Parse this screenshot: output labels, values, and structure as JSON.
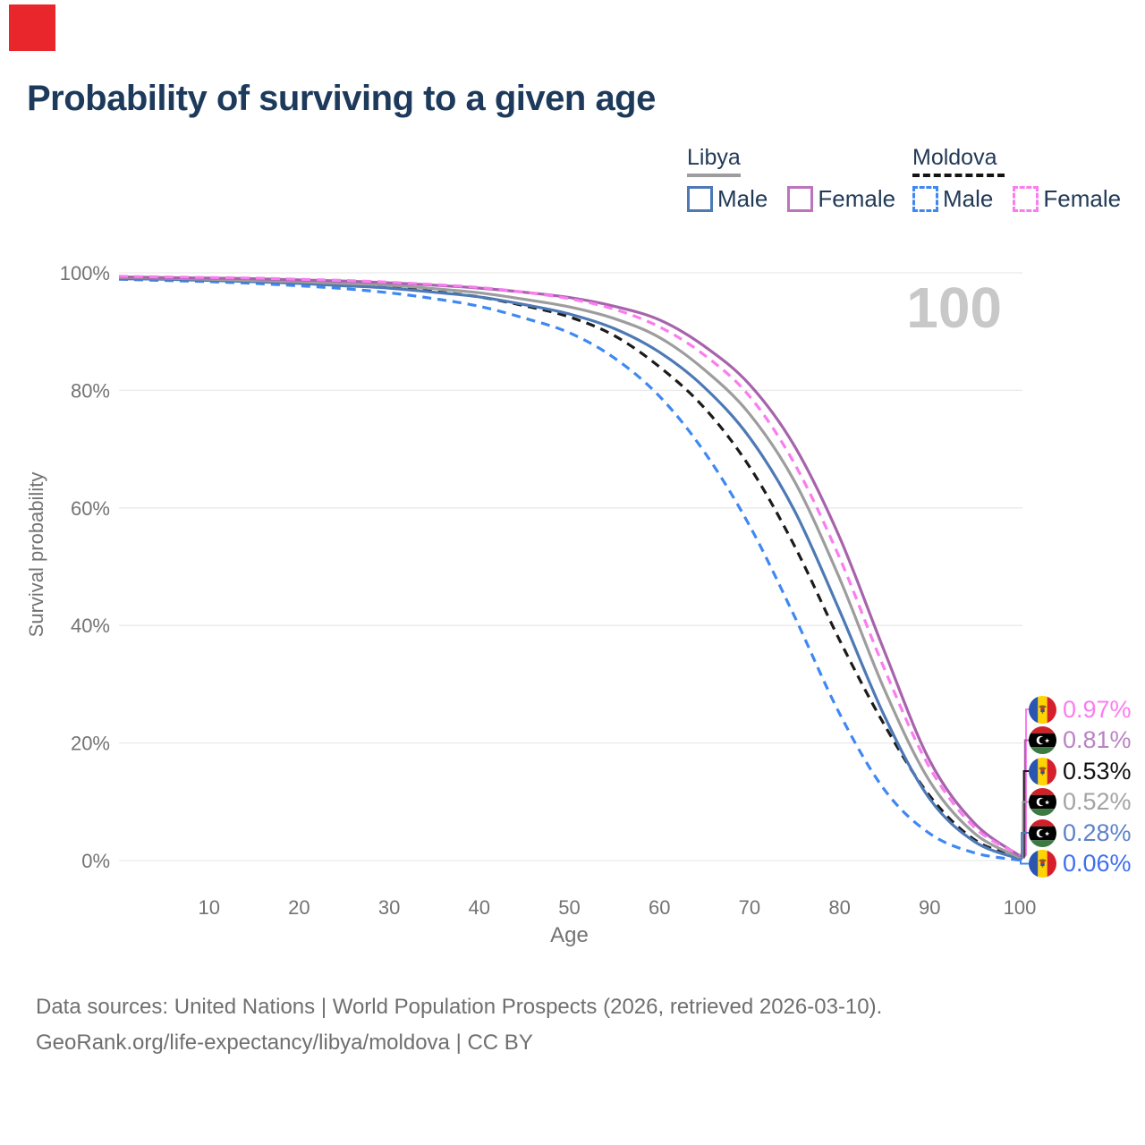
{
  "marker": {
    "color": "#e8262b"
  },
  "title": {
    "text": "Probability of surviving to a given age",
    "color": "#1d3a5c"
  },
  "legend": {
    "text_color": "#223a57",
    "groups": [
      {
        "name": "Libya",
        "underline": "solid",
        "underline_color": "#9d9d9d",
        "items": [
          {
            "label": "Male",
            "color": "#4d79b5",
            "dashed": false
          },
          {
            "label": "Female",
            "color": "#bb74bd",
            "dashed": false
          }
        ]
      },
      {
        "name": "Moldova",
        "underline": "dashed",
        "underline_color": "#141414",
        "items": [
          {
            "label": "Male",
            "color": "#3f88f2",
            "dashed": true
          },
          {
            "label": "Female",
            "color": "#fb7cf0",
            "dashed": true
          }
        ]
      }
    ]
  },
  "chart_data": {
    "type": "line",
    "title": "Probability of surviving to a given age",
    "xlabel": "Age",
    "ylabel": "Survival probability",
    "xlim": [
      0,
      100
    ],
    "ylim": [
      0,
      100
    ],
    "grid": "horizontal",
    "legend_position": "top-right",
    "watermark": "100",
    "x_ticks": [
      10,
      20,
      30,
      40,
      50,
      60,
      70,
      80,
      90,
      100
    ],
    "y_ticks": [
      "100%",
      "80%",
      "60%",
      "40%",
      "20%",
      "0%"
    ],
    "y_tick_values": [
      100,
      80,
      60,
      40,
      20,
      0
    ],
    "x": [
      0,
      5,
      10,
      15,
      20,
      25,
      30,
      35,
      40,
      45,
      50,
      55,
      60,
      65,
      70,
      75,
      80,
      85,
      90,
      95,
      100
    ],
    "series": [
      {
        "name": "Moldova Male",
        "country": "Moldova",
        "sex": "Male",
        "flag": "moldova",
        "color": "#3f88f2",
        "dashed": true,
        "end_label": "0.06%",
        "end_label_color": "#3f6ff0",
        "values": [
          98.9,
          98.7,
          98.5,
          98.2,
          97.8,
          97.3,
          96.6,
          95.6,
          94.3,
          92.3,
          89.8,
          85.5,
          79.0,
          69.5,
          57.0,
          41.5,
          25.0,
          12.0,
          4.6,
          1.3,
          0.06
        ]
      },
      {
        "name": "Moldova Both sexes",
        "country": "Moldova",
        "sex": "Both",
        "flag": "moldova",
        "color": "#1b1b1b",
        "dashed": true,
        "end_label": "0.53%",
        "end_label_color": "#111111",
        "values": [
          99.1,
          99.0,
          98.8,
          98.6,
          98.3,
          97.9,
          97.5,
          96.8,
          95.9,
          94.4,
          92.5,
          89.3,
          84.0,
          77.0,
          67.0,
          53.5,
          37.5,
          23.0,
          11.0,
          3.5,
          0.53
        ]
      },
      {
        "name": "Libya Male",
        "country": "Libya",
        "sex": "Male",
        "flag": "libya",
        "color": "#4d79b5",
        "dashed": false,
        "end_label": "0.28%",
        "end_label_color": "#5d82c8",
        "values": [
          99.0,
          98.9,
          98.7,
          98.5,
          98.2,
          97.8,
          97.4,
          96.7,
          95.9,
          94.6,
          93.0,
          90.5,
          86.5,
          80.5,
          72.0,
          59.5,
          42.5,
          24.5,
          10.5,
          3.2,
          0.28
        ]
      },
      {
        "name": "Libya Both sexes",
        "country": "Libya",
        "sex": "Both",
        "flag": "libya",
        "color": "#9d9d9d",
        "dashed": false,
        "end_label": "0.52%",
        "end_label_color": "#a3a3a3",
        "values": [
          99.2,
          99.1,
          98.9,
          98.7,
          98.5,
          98.2,
          97.9,
          97.3,
          96.6,
          95.5,
          94.2,
          92.2,
          89.0,
          83.5,
          76.0,
          64.5,
          48.0,
          29.0,
          13.5,
          4.6,
          0.52
        ]
      },
      {
        "name": "Libya Female",
        "country": "Libya",
        "sex": "Female",
        "flag": "libya",
        "color": "#a763ab",
        "dashed": false,
        "end_label": "0.81%",
        "end_label_color": "#b983c4",
        "values": [
          99.3,
          99.2,
          99.1,
          99.0,
          98.8,
          98.6,
          98.3,
          97.9,
          97.4,
          96.7,
          95.8,
          94.3,
          92.0,
          87.5,
          81.0,
          70.5,
          55.0,
          35.5,
          17.0,
          6.3,
          0.81
        ]
      },
      {
        "name": "Moldova Female",
        "country": "Moldova",
        "sex": "Female",
        "flag": "moldova",
        "color": "#fb7cf0",
        "dashed": true,
        "end_label": "0.97%",
        "end_label_color": "#fb7cf0",
        "values": [
          99.4,
          99.3,
          99.2,
          99.1,
          98.9,
          98.7,
          98.4,
          98.0,
          97.5,
          96.7,
          95.6,
          93.8,
          90.8,
          86.0,
          79.0,
          67.5,
          51.5,
          32.5,
          15.8,
          5.6,
          0.97
        ]
      }
    ]
  },
  "axis_style": {
    "tick_color": "#737373",
    "grid_color": "#e9e9e9",
    "watermark_color": "#c8c8c8"
  },
  "footer": {
    "line1": "Data sources: United Nations | World Population Prospects (2026, retrieved 2026-03-10).",
    "line2": "GeoRank.org/life-expectancy/libya/moldova | CC BY",
    "color": "#6f6f6f"
  }
}
